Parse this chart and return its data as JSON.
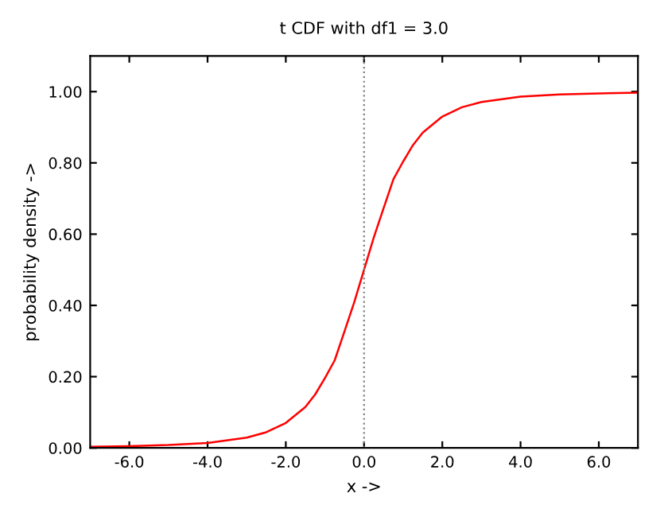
{
  "chart_data": {
    "type": "line",
    "title": "t CDF with df1 = 3.0",
    "xlabel": "x ->",
    "ylabel": "probability density ->",
    "x": [
      -7,
      -6,
      -5,
      -4,
      -3,
      -2.5,
      -2,
      -1.5,
      -1.25,
      -1,
      -0.75,
      -0.5,
      -0.25,
      0,
      0.25,
      0.5,
      0.75,
      1,
      1.25,
      1.5,
      2,
      2.5,
      3,
      4,
      5,
      6,
      7
    ],
    "series": [
      {
        "color": "#ff0000",
        "values": [
          0.003,
          0.005,
          0.008,
          0.014,
          0.029,
          0.044,
          0.07,
          0.115,
          0.15,
          0.196,
          0.246,
          0.327,
          0.409,
          0.5,
          0.591,
          0.673,
          0.754,
          0.804,
          0.85,
          0.885,
          0.93,
          0.956,
          0.971,
          0.986,
          0.992,
          0.995,
          0.997
        ]
      }
    ],
    "xlim": [
      -7,
      7
    ],
    "ylim": [
      0,
      1.1
    ],
    "xticks": [
      {
        "value": -6,
        "label": "-6.0"
      },
      {
        "value": -4,
        "label": "-4.0"
      },
      {
        "value": -2,
        "label": "-2.0"
      },
      {
        "value": 0,
        "label": "0.0"
      },
      {
        "value": 2,
        "label": "2.0"
      },
      {
        "value": 4,
        "label": "4.0"
      },
      {
        "value": 6,
        "label": "6.0"
      }
    ],
    "yticks": [
      {
        "value": 0,
        "label": "0.00"
      },
      {
        "value": 0.2,
        "label": "0.20"
      },
      {
        "value": 0.4,
        "label": "0.40"
      },
      {
        "value": 0.6,
        "label": "0.60"
      },
      {
        "value": 0.8,
        "label": "0.80"
      },
      {
        "value": 1.0,
        "label": "1.00"
      }
    ],
    "ref_lines": [
      {
        "axis": "x",
        "value": 0,
        "color": "#808080",
        "line_style": "dotted"
      }
    ],
    "grid": false,
    "legend": false
  }
}
